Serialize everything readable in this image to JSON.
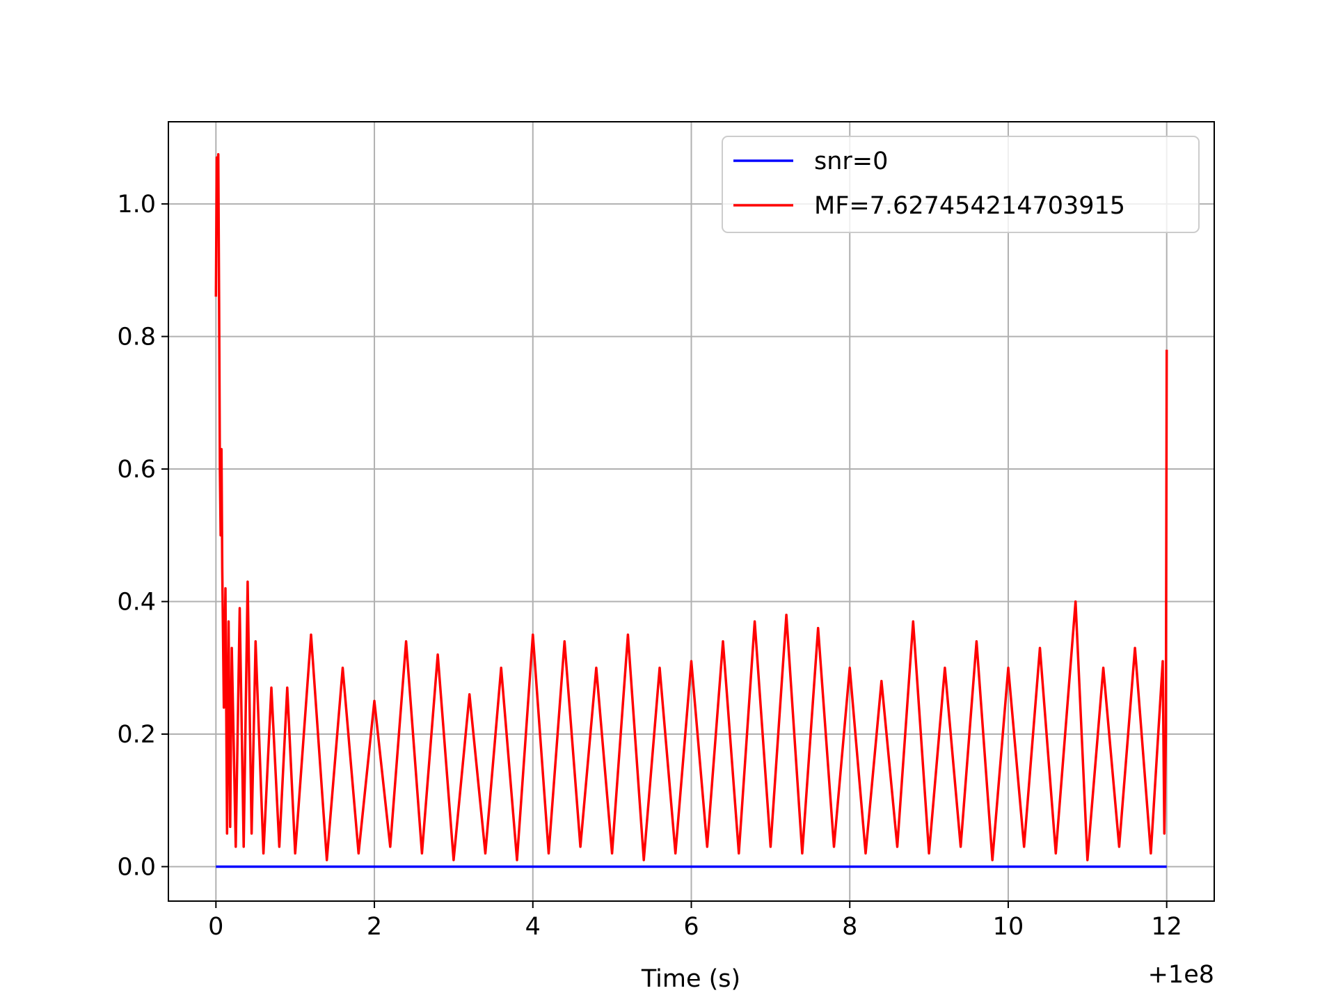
{
  "chart_data": {
    "type": "line",
    "title": "",
    "xlabel": "Time (s)",
    "ylabel": "",
    "x_offset_label": "+1e8",
    "xlim": [
      -0.6,
      12.6
    ],
    "ylim": [
      -0.052,
      1.124
    ],
    "grid": true,
    "legend_position": "upper right",
    "x_ticks": [
      {
        "value": 0,
        "label": "0"
      },
      {
        "value": 2,
        "label": "2"
      },
      {
        "value": 4,
        "label": "4"
      },
      {
        "value": 6,
        "label": "6"
      },
      {
        "value": 8,
        "label": "8"
      },
      {
        "value": 10,
        "label": "10"
      },
      {
        "value": 12,
        "label": "12"
      }
    ],
    "y_ticks": [
      {
        "value": 0.0,
        "label": "0.0"
      },
      {
        "value": 0.2,
        "label": "0.2"
      },
      {
        "value": 0.4,
        "label": "0.4"
      },
      {
        "value": 0.6,
        "label": "0.6"
      },
      {
        "value": 0.8,
        "label": "0.8"
      },
      {
        "value": 1.0,
        "label": "1.0"
      }
    ],
    "series": [
      {
        "name": "snr=0",
        "color": "#0000ff",
        "x": [
          0,
          12
        ],
        "y": [
          0,
          0
        ]
      },
      {
        "name": "MF=7.627454214703915",
        "color": "#ff0000",
        "x": [
          0,
          0.01,
          0.02,
          0.03,
          0.04,
          0.05,
          0.06,
          0.07,
          0.08,
          0.1,
          0.12,
          0.14,
          0.16,
          0.18,
          0.2,
          0.25,
          0.3,
          0.35,
          0.4,
          0.45,
          0.5,
          0.6,
          0.7,
          0.8,
          0.9,
          1.0,
          1.2,
          1.4,
          1.6,
          1.8,
          2.0,
          2.2,
          2.4,
          2.6,
          2.8,
          3.0,
          3.2,
          3.4,
          3.6,
          3.8,
          4.0,
          4.2,
          4.4,
          4.6,
          4.8,
          5.0,
          5.2,
          5.4,
          5.6,
          5.8,
          6.0,
          6.2,
          6.4,
          6.6,
          6.8,
          7.0,
          7.2,
          7.4,
          7.6,
          7.8,
          8.0,
          8.2,
          8.4,
          8.6,
          8.8,
          9.0,
          9.2,
          9.4,
          9.6,
          9.8,
          10.0,
          10.2,
          10.4,
          10.6,
          10.85,
          11.0,
          11.2,
          11.4,
          11.6,
          11.8,
          11.95,
          11.97,
          11.99,
          12.0
        ],
        "y": [
          0.86,
          1.07,
          0.98,
          1.075,
          0.85,
          0.6,
          0.5,
          0.63,
          0.45,
          0.24,
          0.42,
          0.05,
          0.37,
          0.06,
          0.33,
          0.03,
          0.39,
          0.03,
          0.43,
          0.05,
          0.34,
          0.02,
          0.27,
          0.03,
          0.27,
          0.02,
          0.35,
          0.01,
          0.3,
          0.02,
          0.25,
          0.03,
          0.34,
          0.02,
          0.32,
          0.01,
          0.26,
          0.02,
          0.3,
          0.01,
          0.35,
          0.02,
          0.34,
          0.03,
          0.3,
          0.02,
          0.35,
          0.01,
          0.3,
          0.02,
          0.31,
          0.03,
          0.34,
          0.02,
          0.37,
          0.03,
          0.38,
          0.02,
          0.36,
          0.03,
          0.3,
          0.02,
          0.28,
          0.03,
          0.37,
          0.02,
          0.3,
          0.03,
          0.34,
          0.01,
          0.3,
          0.03,
          0.33,
          0.02,
          0.4,
          0.01,
          0.3,
          0.03,
          0.33,
          0.02,
          0.31,
          0.05,
          0.2,
          0.78
        ]
      }
    ]
  }
}
